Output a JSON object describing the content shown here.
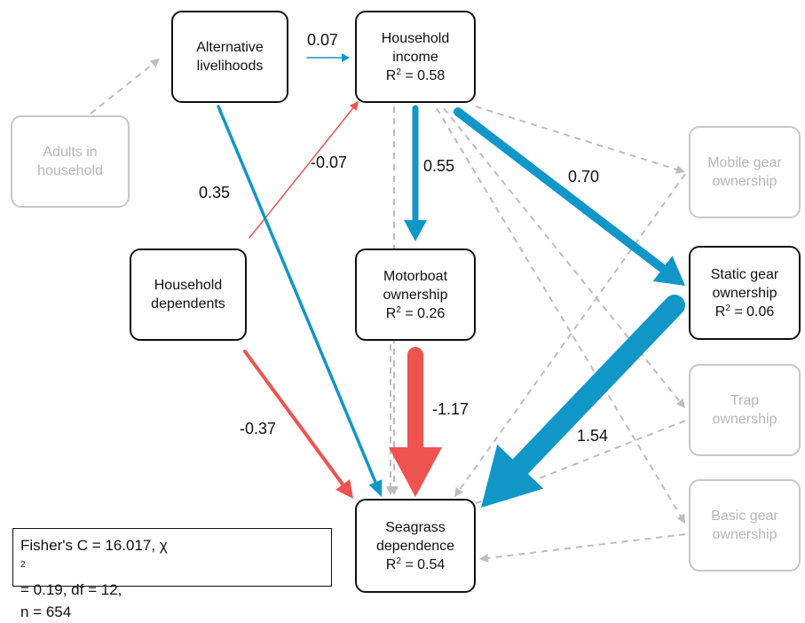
{
  "colors": {
    "positive": "#1196c8",
    "negative": "#ef5350",
    "nonsignificant": "#bdbdbd",
    "active_border": "#111111",
    "faded_border": "#c8c8c8",
    "faded_text": "#b7b7b7"
  },
  "nodes": {
    "adults": {
      "line1": "Adults in",
      "line2": "household"
    },
    "alt_livelihoods": {
      "line1": "Alternative",
      "line2": "livelihoods"
    },
    "income": {
      "line1": "Household",
      "line2": "income",
      "r2_prefix": "R",
      "r2_sup": "2",
      "r2_value": " = 0.58"
    },
    "dependents": {
      "line1": "Household",
      "line2": "dependents"
    },
    "motorboat": {
      "line1": "Motorboat",
      "line2": "ownership",
      "r2_prefix": "R",
      "r2_sup": "2",
      "r2_value": " = 0.26"
    },
    "mobile_gear": {
      "line1": "Mobile gear",
      "line2": "ownership"
    },
    "static_gear": {
      "line1": "Static gear",
      "line2": "ownership",
      "r2_prefix": "R",
      "r2_sup": "2",
      "r2_value": " = 0.06"
    },
    "trap": {
      "line1": "Trap",
      "line2": "ownership"
    },
    "basic_gear": {
      "line1": "Basic gear",
      "line2": "ownership"
    },
    "seagrass": {
      "line1": "Seagrass",
      "line2": "dependence",
      "r2_prefix": "R",
      "r2_sup": "2",
      "r2_value": " = 0.54"
    }
  },
  "coefficients": {
    "alt_to_income": "0.07",
    "dependents_to_income": "-0.07",
    "alt_to_seagrass": "0.35",
    "income_to_motorboat": "0.55",
    "income_to_static": "0.70",
    "motorboat_to_seagrass": "-1.17",
    "static_to_seagrass": "1.54",
    "dependents_to_seagrass": "-0.37"
  },
  "stats": {
    "line1_a": "Fisher's C = 16.017, χ",
    "line1_sup": "2",
    "line1_b": " = 0.19,  df = 12,",
    "line2": "n = 654"
  }
}
